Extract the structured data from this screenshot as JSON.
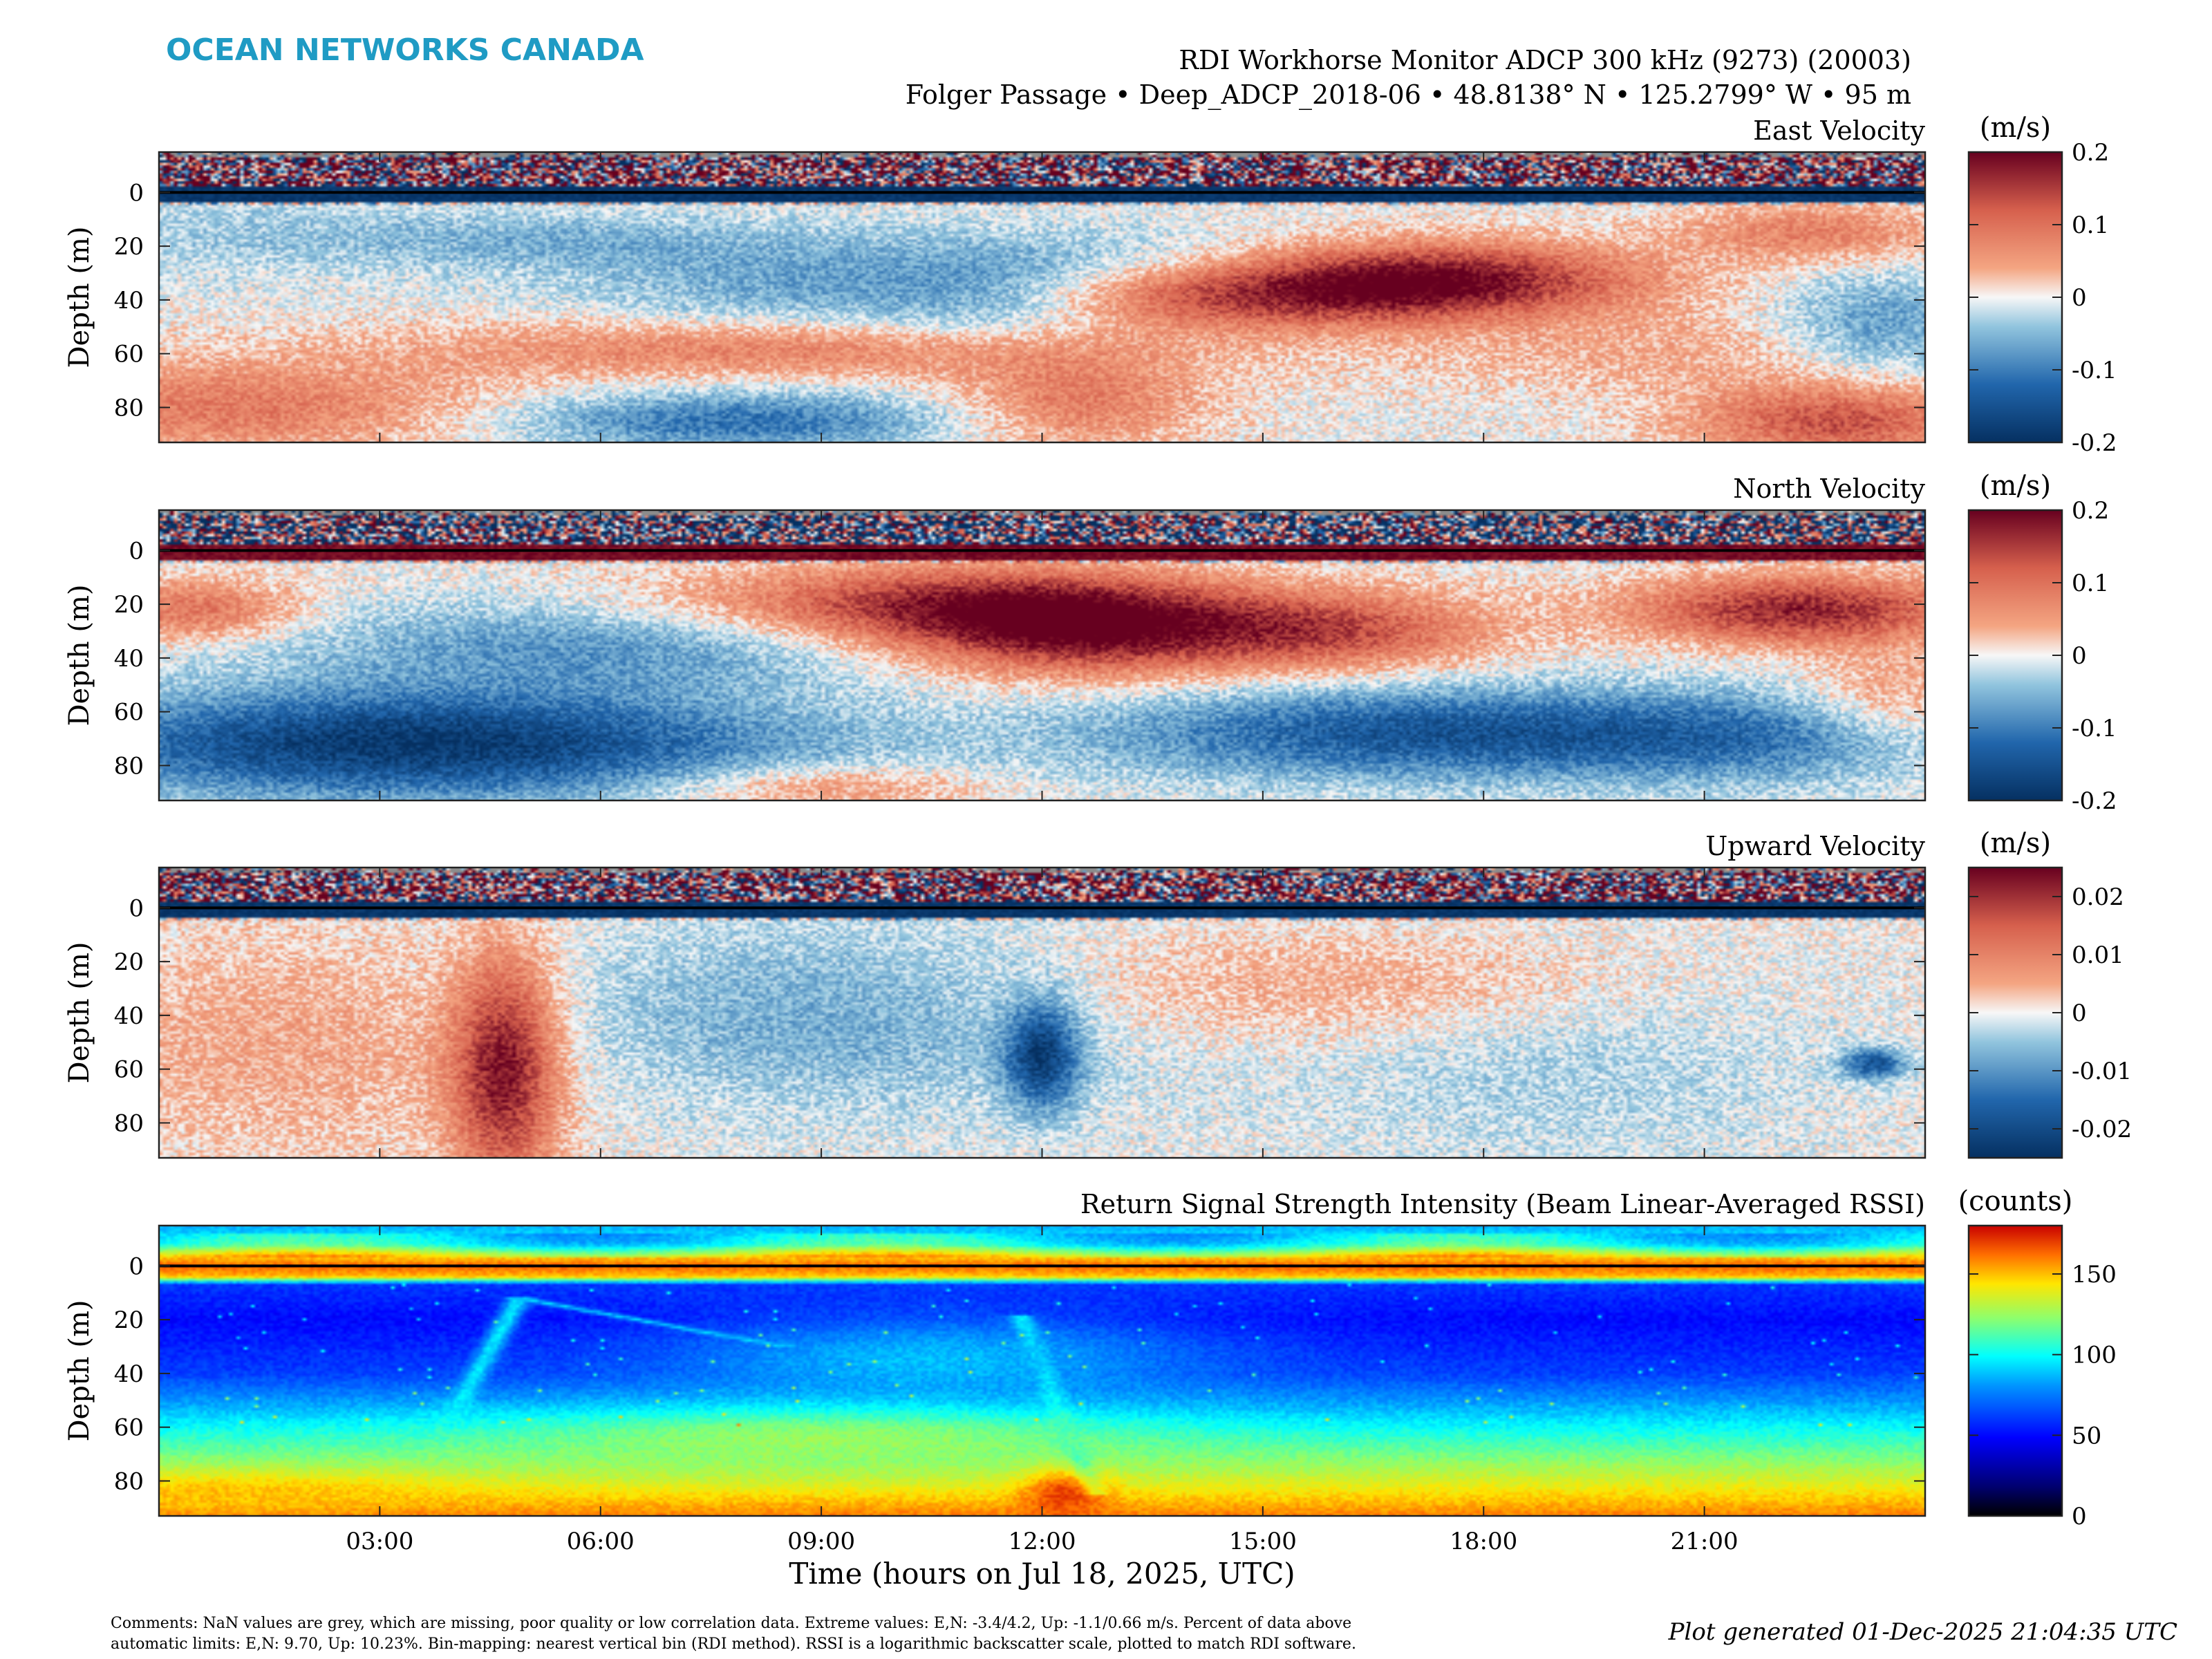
{
  "header": {
    "brand": "OCEAN NETWORKS CANADA",
    "brand_color": "#1f9bc4",
    "title_line1": "RDI Workhorse Monitor ADCP 300 kHz (9273) (20003)",
    "title_line2": "Folger Passage • Deep_ADCP_2018-06 • 48.8138° N • 125.2799° W • 95 m"
  },
  "footer": {
    "comments_line1": "Comments: NaN values are grey, which are missing, poor quality or low correlation data. Extreme values: E,N: -3.4/4.2, Up: -1.1/0.66 m/s. Percent of data above",
    "comments_line2": "automatic limits: E,N: 9.70, Up: 10.23%. Bin-mapping: nearest vertical bin (RDI method). RSSI is a logarithmic backscatter scale, plotted to match RDI software.",
    "generated": "Plot generated 01-Dec-2025 21:04:35 UTC"
  },
  "chart_data": [
    {
      "type": "heatmap",
      "title": "East Velocity",
      "ylabel": "Depth (m)",
      "xlabel": "",
      "x_range_hours": [
        0,
        24
      ],
      "y_range_m": [
        -15,
        93
      ],
      "y_ticks": [
        0,
        20,
        40,
        60,
        80
      ],
      "colormap": "diverging-red-blue",
      "colorbar": {
        "unit": "(m/s)",
        "range": [
          -0.2,
          0.2
        ],
        "ticks": [
          0.2,
          0.1,
          0,
          -0.1,
          -0.2
        ],
        "tick_labels": [
          "0.2",
          "0.1",
          "0",
          "-0.1",
          "-0.2"
        ]
      },
      "features": [
        {
          "t": 0.8,
          "depth": 15,
          "v": -0.03,
          "sx": 1.8,
          "sz": 12
        },
        {
          "t": 5.0,
          "depth": 18,
          "v": -0.05,
          "sx": 2.2,
          "sz": 8
        },
        {
          "t": 9.5,
          "depth": 35,
          "v": -0.08,
          "sx": 2.5,
          "sz": 14
        },
        {
          "t": 11.5,
          "depth": 40,
          "v": -0.06,
          "sx": 1.2,
          "sz": 12
        },
        {
          "t": 13.5,
          "depth": 30,
          "v": -0.04,
          "sx": 1.5,
          "sz": 10
        },
        {
          "t": 15.0,
          "depth": 38,
          "v": 0.17,
          "sx": 2.8,
          "sz": 9
        },
        {
          "t": 17.5,
          "depth": 30,
          "v": 0.13,
          "sx": 1.8,
          "sz": 9
        },
        {
          "t": 8.5,
          "depth": 58,
          "v": 0.09,
          "sx": 3.5,
          "sz": 8
        },
        {
          "t": 12.5,
          "depth": 78,
          "v": 0.09,
          "sx": 1.2,
          "sz": 12
        },
        {
          "t": 7.8,
          "depth": 85,
          "v": -0.11,
          "sx": 2.2,
          "sz": 8
        },
        {
          "t": 1.0,
          "depth": 80,
          "v": 0.09,
          "sx": 2.5,
          "sz": 12
        },
        {
          "t": 22.8,
          "depth": 85,
          "v": 0.13,
          "sx": 1.4,
          "sz": 10
        },
        {
          "t": 22.5,
          "depth": 15,
          "v": 0.08,
          "sx": 1.3,
          "sz": 8
        },
        {
          "t": 23.4,
          "depth": 50,
          "v": -0.08,
          "sx": 1.0,
          "sz": 14
        },
        {
          "t": 20.5,
          "depth": 60,
          "v": 0.04,
          "sx": 2.5,
          "sz": 10
        }
      ],
      "surface_value": -0.19
    },
    {
      "type": "heatmap",
      "title": "North Velocity",
      "ylabel": "Depth (m)",
      "xlabel": "",
      "x_range_hours": [
        0,
        24
      ],
      "y_range_m": [
        -15,
        93
      ],
      "y_ticks": [
        0,
        20,
        40,
        60,
        80
      ],
      "colormap": "diverging-red-blue",
      "colorbar": {
        "unit": "(m/s)",
        "range": [
          -0.2,
          0.2
        ],
        "ticks": [
          0.2,
          0.1,
          0,
          -0.1,
          -0.2
        ],
        "tick_labels": [
          "0.2",
          "0.1",
          "0",
          "-0.1",
          "-0.2"
        ]
      },
      "features": [
        {
          "t": 3.5,
          "depth": 72,
          "v": -0.19,
          "sx": 3.5,
          "sz": 14
        },
        {
          "t": 6.0,
          "depth": 35,
          "v": -0.08,
          "sx": 3.0,
          "sz": 12
        },
        {
          "t": 0.5,
          "depth": 22,
          "v": 0.1,
          "sx": 1.0,
          "sz": 8
        },
        {
          "t": 10.5,
          "depth": 20,
          "v": 0.14,
          "sx": 2.5,
          "sz": 10
        },
        {
          "t": 12.5,
          "depth": 30,
          "v": 0.18,
          "sx": 1.8,
          "sz": 12
        },
        {
          "t": 16.0,
          "depth": 30,
          "v": 0.12,
          "sx": 1.5,
          "sz": 10
        },
        {
          "t": 17.0,
          "depth": 68,
          "v": -0.14,
          "sx": 3.0,
          "sz": 12
        },
        {
          "t": 21.5,
          "depth": 70,
          "v": -0.08,
          "sx": 2.0,
          "sz": 12
        },
        {
          "t": 22.3,
          "depth": 22,
          "v": 0.17,
          "sx": 1.6,
          "sz": 9
        },
        {
          "t": 9.0,
          "depth": 88,
          "v": 0.07,
          "sx": 1.5,
          "sz": 6
        },
        {
          "t": 23.5,
          "depth": 55,
          "v": 0.06,
          "sx": 0.8,
          "sz": 12
        }
      ],
      "surface_value": 0.19
    },
    {
      "type": "heatmap",
      "title": "Upward Velocity",
      "ylabel": "Depth (m)",
      "xlabel": "",
      "x_range_hours": [
        0,
        24
      ],
      "y_range_m": [
        -15,
        93
      ],
      "y_ticks": [
        0,
        20,
        40,
        60,
        80
      ],
      "colormap": "diverging-red-blue",
      "colorbar": {
        "unit": "(m/s)",
        "range": [
          -0.025,
          0.025
        ],
        "ticks": [
          0.02,
          0.01,
          0,
          -0.01,
          -0.02
        ],
        "tick_labels": [
          "0.02",
          "0.01",
          "0",
          "-0.01",
          "-0.02"
        ]
      },
      "features": [
        {
          "t": 4.7,
          "depth": 60,
          "v": 0.022,
          "sx": 0.5,
          "sz": 30
        },
        {
          "t": 12.0,
          "depth": 55,
          "v": -0.02,
          "sx": 0.35,
          "sz": 14
        },
        {
          "t": 9.0,
          "depth": 40,
          "v": -0.008,
          "sx": 3.0,
          "sz": 25
        },
        {
          "t": 2.0,
          "depth": 50,
          "v": 0.006,
          "sx": 2.5,
          "sz": 30
        },
        {
          "t": 15.5,
          "depth": 30,
          "v": 0.006,
          "sx": 3.0,
          "sz": 15
        },
        {
          "t": 23.3,
          "depth": 58,
          "v": -0.018,
          "sx": 0.3,
          "sz": 4
        },
        {
          "t": 19.0,
          "depth": 60,
          "v": -0.004,
          "sx": 2.5,
          "sz": 25
        }
      ],
      "surface_value": -0.024
    },
    {
      "type": "heatmap",
      "title": "Return Signal Strength Intensity (Beam Linear-Averaged RSSI)",
      "ylabel": "Depth (m)",
      "xlabel": "Time (hours on Jul 18, 2025, UTC)",
      "x_range_hours": [
        0,
        24
      ],
      "x_ticks": [
        3,
        6,
        9,
        12,
        15,
        18,
        21
      ],
      "x_tick_labels": [
        "03:00",
        "06:00",
        "09:00",
        "12:00",
        "15:00",
        "18:00",
        "21:00"
      ],
      "y_range_m": [
        -15,
        93
      ],
      "y_ticks": [
        0,
        20,
        40,
        60,
        80
      ],
      "colormap": "jet",
      "colorbar": {
        "unit": "(counts)",
        "range": [
          0,
          180
        ],
        "ticks": [
          150,
          100,
          50,
          0
        ],
        "tick_labels": [
          "150",
          "100",
          "50",
          "0"
        ]
      },
      "profile": [
        {
          "depth": -15,
          "counts": 85
        },
        {
          "depth": -8,
          "counts": 100
        },
        {
          "depth": -3,
          "counts": 150
        },
        {
          "depth": 0,
          "counts": 165
        },
        {
          "depth": 4,
          "counts": 150
        },
        {
          "depth": 7,
          "counts": 60
        },
        {
          "depth": 20,
          "counts": 50
        },
        {
          "depth": 40,
          "counts": 62
        },
        {
          "depth": 55,
          "counts": 90
        },
        {
          "depth": 70,
          "counts": 118
        },
        {
          "depth": 82,
          "counts": 140
        },
        {
          "depth": 93,
          "counts": 160
        }
      ],
      "features": [
        {
          "kind": "line",
          "t0": 3.9,
          "d0": 60,
          "t1": 4.9,
          "d1": 12,
          "counts": 95
        },
        {
          "kind": "line",
          "t0": 4.9,
          "d0": 12,
          "t1": 8.5,
          "d1": 30,
          "counts": 90
        },
        {
          "kind": "line",
          "t0": 11.7,
          "d0": 18,
          "t1": 12.7,
          "d1": 85,
          "counts": 100
        },
        {
          "kind": "blob",
          "t": 10.5,
          "depth": 35,
          "counts": 88,
          "sx": 2.5,
          "sz": 12
        },
        {
          "kind": "blob",
          "t": 9.0,
          "depth": 65,
          "counts": 125,
          "sx": 3.0,
          "sz": 8
        },
        {
          "kind": "blob",
          "t": 12.3,
          "depth": 85,
          "counts": 170,
          "sx": 0.4,
          "sz": 6
        },
        {
          "kind": "blob",
          "t": 1.0,
          "depth": 85,
          "counts": 150,
          "sx": 2.0,
          "sz": 5
        }
      ]
    }
  ],
  "colors": {
    "nan_grey": "#8c8c8c",
    "surface_line": "#000000"
  }
}
